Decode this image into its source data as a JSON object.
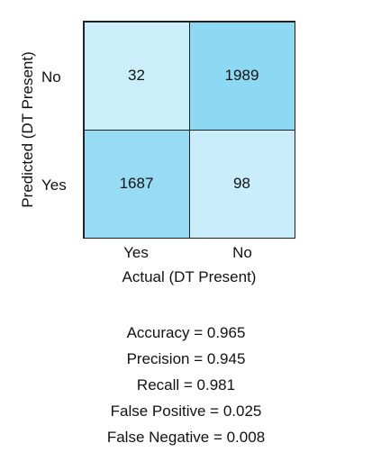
{
  "chart_data": {
    "type": "heatmap",
    "title": "",
    "xlabel": "Actual (DT Present)",
    "ylabel": "Predicted (DT Present)",
    "x_categories": [
      "Yes",
      "No"
    ],
    "y_categories": [
      "No",
      "Yes"
    ],
    "matrix": [
      [
        32,
        1989
      ],
      [
        1687,
        98
      ]
    ],
    "colors": {
      "low": "#cdeefb",
      "high": "#8dd9f3",
      "border": "#222222"
    },
    "legend": "none",
    "grid": false
  },
  "metrics": [
    "Accuracy = 0.965",
    "Precision = 0.945",
    "Recall = 0.981",
    "False Positive = 0.025",
    "False Negative = 0.008"
  ]
}
